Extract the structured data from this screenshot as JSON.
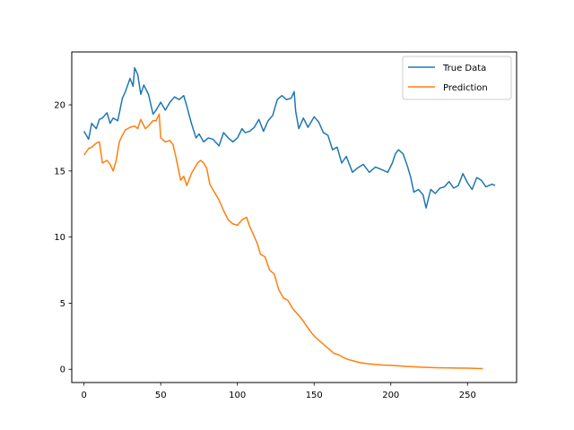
{
  "chart_data": {
    "type": "line",
    "title": "",
    "xlabel": "",
    "ylabel": "",
    "xlim": [
      -8,
      282
    ],
    "ylim": [
      -1,
      24
    ],
    "xticks": [
      0,
      50,
      100,
      150,
      200,
      250
    ],
    "yticks": [
      0,
      5,
      10,
      15,
      20
    ],
    "grid": false,
    "legend": "top-right",
    "series": [
      {
        "name": "True Data",
        "color": "#1f77b4",
        "x": [
          0,
          3,
          5,
          8,
          10,
          12,
          15,
          17,
          19,
          22,
          25,
          27,
          30,
          32,
          33,
          35,
          37,
          39,
          42,
          45,
          47,
          50,
          53,
          56,
          59,
          62,
          65,
          67,
          70,
          73,
          75,
          78,
          81,
          84,
          88,
          91,
          94,
          97,
          100,
          103,
          105,
          108,
          111,
          114,
          117,
          120,
          123,
          126,
          129,
          132,
          135,
          137,
          138,
          140,
          143,
          146,
          150,
          153,
          156,
          159,
          162,
          165,
          168,
          171,
          175,
          178,
          182,
          186,
          190,
          194,
          198,
          201,
          203,
          205,
          208,
          211,
          213,
          215,
          218,
          221,
          223,
          226,
          229,
          232,
          235,
          238,
          241,
          244,
          247,
          250,
          253,
          256,
          259,
          262,
          266,
          268
        ],
        "y": [
          18.0,
          17.4,
          18.6,
          18.2,
          18.9,
          19.0,
          19.4,
          18.6,
          19.0,
          18.8,
          20.5,
          21.0,
          22.0,
          21.4,
          22.8,
          22.3,
          20.8,
          21.5,
          20.8,
          19.3,
          19.6,
          20.2,
          19.6,
          20.2,
          20.6,
          20.4,
          20.7,
          19.9,
          18.6,
          17.5,
          17.8,
          17.2,
          17.5,
          17.4,
          16.9,
          17.9,
          17.5,
          17.2,
          17.5,
          18.2,
          17.9,
          18.0,
          18.3,
          18.9,
          18.0,
          18.8,
          19.2,
          20.4,
          20.7,
          20.4,
          20.5,
          21.0,
          19.5,
          18.2,
          19.0,
          18.3,
          19.1,
          18.7,
          17.9,
          17.7,
          16.6,
          16.8,
          15.6,
          16.1,
          14.9,
          15.2,
          15.5,
          14.9,
          15.3,
          15.1,
          14.9,
          15.6,
          16.3,
          16.6,
          16.3,
          15.3,
          14.5,
          13.4,
          13.6,
          13.2,
          12.2,
          13.6,
          13.3,
          13.7,
          13.8,
          14.2,
          13.7,
          13.9,
          14.8,
          14.1,
          13.6,
          14.5,
          14.3,
          13.8,
          14.0,
          13.9
        ]
      },
      {
        "name": "Prediction",
        "color": "#ff7f0e",
        "x": [
          0,
          3,
          5,
          8,
          10,
          12,
          15,
          17,
          19,
          21,
          23,
          25,
          27,
          30,
          33,
          35,
          37,
          40,
          42,
          45,
          47,
          49,
          50,
          53,
          56,
          58,
          60,
          63,
          65,
          67,
          70,
          72,
          74,
          76,
          78,
          80,
          82,
          85,
          88,
          91,
          94,
          97,
          100,
          103,
          106,
          108,
          110,
          113,
          115,
          118,
          121,
          124,
          127,
          130,
          133,
          136,
          139,
          142,
          145,
          148,
          151,
          154,
          157,
          160,
          163,
          166,
          169,
          172,
          175,
          180,
          185,
          190,
          195,
          200,
          210,
          220,
          230,
          240,
          250,
          260
        ],
        "y": [
          16.2,
          16.7,
          16.8,
          17.1,
          17.2,
          15.6,
          15.8,
          15.5,
          15.0,
          15.8,
          17.2,
          17.7,
          18.1,
          18.3,
          18.4,
          18.2,
          18.9,
          18.2,
          18.4,
          18.8,
          18.8,
          19.3,
          17.5,
          17.2,
          17.3,
          17.0,
          16.0,
          14.3,
          14.6,
          13.9,
          14.8,
          15.2,
          15.6,
          15.8,
          15.6,
          15.2,
          14.0,
          13.4,
          12.8,
          12.0,
          11.3,
          11.0,
          10.9,
          11.3,
          11.5,
          10.8,
          10.3,
          9.5,
          8.7,
          8.5,
          7.5,
          7.2,
          6.0,
          5.4,
          5.2,
          4.6,
          4.2,
          3.8,
          3.3,
          2.8,
          2.4,
          2.1,
          1.8,
          1.5,
          1.2,
          1.1,
          0.9,
          0.75,
          0.65,
          0.5,
          0.42,
          0.36,
          0.32,
          0.3,
          0.22,
          0.16,
          0.12,
          0.1,
          0.08,
          0.05
        ]
      }
    ]
  }
}
